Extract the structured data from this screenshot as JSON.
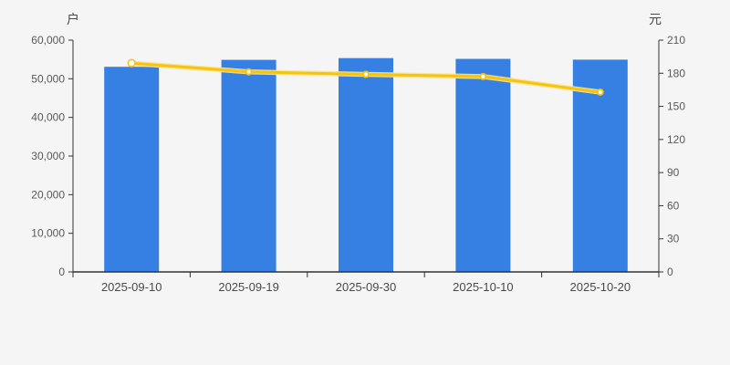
{
  "colors": {
    "background": "#f5f5f6",
    "axis_line": "#333333",
    "tick_label": "#595959",
    "date_label": "#4a4a4a",
    "bar": "#3580e2",
    "line": "#f8c40a",
    "line_halo": "#fce28e",
    "marker_fill": "#ffffff"
  },
  "chart_data": {
    "type": "bar",
    "title": "",
    "legend": "none",
    "grid": false,
    "categories": [
      "2025-09-10",
      "2025-09-19",
      "2025-09-30",
      "2025-10-10",
      "2025-10-20"
    ],
    "series": [
      {
        "name": "户",
        "type": "bar",
        "axis": "left",
        "color": "#3580e2",
        "values": [
          53100,
          54900,
          55350,
          55150,
          54950
        ]
      },
      {
        "name": "元",
        "type": "line",
        "axis": "right",
        "color": "#f8c40a",
        "values": [
          189.2,
          181.3,
          179.0,
          177.0,
          162.9
        ]
      }
    ],
    "left_axis": {
      "label": "户",
      "min": 0,
      "max": 60000,
      "tick_step": 10000,
      "ticks": [
        "0",
        "10,000",
        "20,000",
        "30,000",
        "40,000",
        "50,000",
        "60,000"
      ]
    },
    "right_axis": {
      "label": "元",
      "min": 0,
      "max": 210,
      "tick_step": 30,
      "ticks": [
        "0",
        "30",
        "60",
        "90",
        "120",
        "150",
        "180",
        "210"
      ]
    }
  }
}
